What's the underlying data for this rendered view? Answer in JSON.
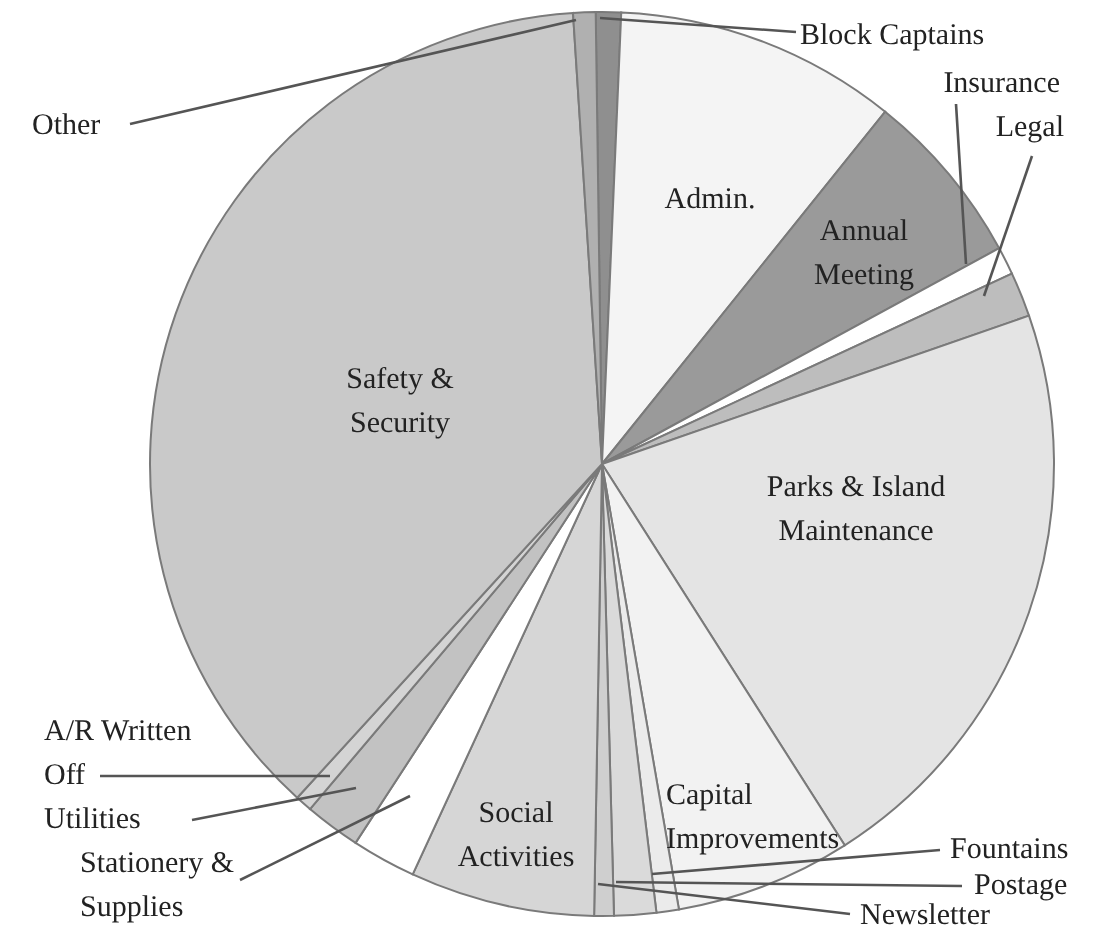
{
  "chart_data": {
    "type": "pie",
    "categories": [
      "Block Captains",
      "Admin.",
      "Annual Meeting",
      "Insurance",
      "Legal",
      "Parks & Island Maintenance",
      "Capital Improvements",
      "Fountains",
      "Postage",
      "Newsletter",
      "Social Activities",
      "Stationery & Supplies",
      "Utilities",
      "A/R Written Off",
      "Safety & Security",
      "Other"
    ],
    "values": [
      0.9,
      10.1,
      6.3,
      1.0,
      1.6,
      21.3,
      6.3,
      0.8,
      1.5,
      0.7,
      6.6,
      2.3,
      2.0,
      0.6,
      37.2,
      0.8
    ],
    "colors": [
      "#8f8f8f",
      "#f4f4f4",
      "#9a9a9a",
      "#ffffff",
      "#bdbdbd",
      "#e4e4e4",
      "#f2f2f2",
      "#ebebeb",
      "#dadada",
      "#cfcfcf",
      "#d6d6d6",
      "#ffffff",
      "#c2c2c2",
      "#d4d4d4",
      "#c9c9c9",
      "#b0b0b0"
    ]
  }
}
